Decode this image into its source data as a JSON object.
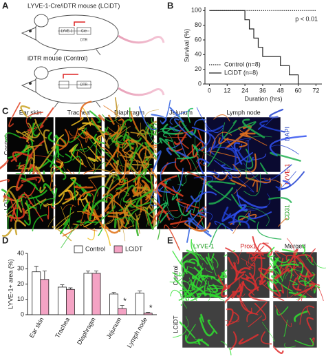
{
  "panel_labels": [
    "A",
    "B",
    "C",
    "D",
    "E"
  ],
  "panel_a": {
    "top_title": "LYVE-1-Cre/iDTR mouse (LCiDT)",
    "top_constructs": [
      "LYVE-1",
      "Cre",
      "DTR"
    ],
    "bottom_title": "iDTR mouse (Control)",
    "bottom_constructs": [
      "DTR"
    ]
  },
  "chart_data": [
    {
      "type": "line",
      "step": true,
      "xlabel": "Duration (hrs)",
      "ylabel": "Survival (%)",
      "annotation": "p < 0.01",
      "xlim": [
        -3,
        76
      ],
      "ylim": [
        0,
        105
      ],
      "xticks": [
        0,
        12,
        24,
        36,
        48,
        60,
        72
      ],
      "yticks": [
        0,
        20,
        40,
        60,
        80,
        100
      ],
      "legend": "lower left",
      "series": [
        {
          "name": "Control (n=8)",
          "color": "#222222",
          "dash": "dotted",
          "x": [
            0,
            72
          ],
          "values": [
            100,
            100
          ]
        },
        {
          "name": "LCiDT (n=8)",
          "color": "#222222",
          "dash": "solid",
          "x": [
            0,
            24,
            27,
            30,
            33,
            36,
            48,
            54,
            60
          ],
          "values": [
            100,
            87.5,
            75,
            62.5,
            50,
            37.5,
            25,
            12.5,
            0
          ]
        }
      ]
    },
    {
      "type": "bar",
      "ylabel": "LYVE-1+ area (%)",
      "categories": [
        "Ear skin",
        "Trachea",
        "Diaphragm",
        "Jejunum",
        "Lymph node"
      ],
      "ylim": [
        0,
        40
      ],
      "yticks": [
        0,
        10,
        20,
        30,
        40
      ],
      "legend": "upper right",
      "series": [
        {
          "name": "Control",
          "color": "#ffffff",
          "values": [
            28,
            18,
            27,
            13.5,
            14
          ],
          "errors": [
            3.5,
            1.5,
            1.5,
            1,
            1.5
          ]
        },
        {
          "name": "LCiDT",
          "color": "#f4a3c4",
          "values": [
            23,
            16.5,
            27,
            4,
            1
          ],
          "errors": [
            5.5,
            1,
            1.5,
            2,
            0.5
          ],
          "significance": [
            null,
            null,
            null,
            "*",
            "*"
          ]
        }
      ]
    }
  ],
  "panel_c": {
    "columns": [
      "Ear skin",
      "Trachea",
      "Diaphragm",
      "Jejunum",
      "Lymph node"
    ],
    "rows": [
      "Control",
      "LCiDT"
    ],
    "stain_labels": [
      "CD31",
      "LYVE-1",
      "DAPI"
    ]
  },
  "panel_e": {
    "columns": [
      "LYVE-1",
      "Prox1",
      "Merged"
    ],
    "rows": [
      "Control",
      "LCiDT"
    ]
  }
}
